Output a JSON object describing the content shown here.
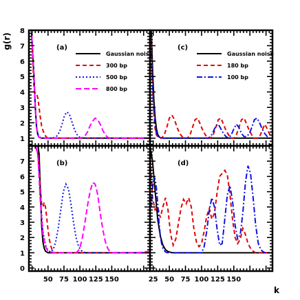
{
  "figure": {
    "ylabel": "g(r)",
    "xlabel": "k"
  },
  "chart_data": [
    {
      "type": "line",
      "panel_label": "(a)",
      "xlim": [
        20,
        210
      ],
      "ylim": [
        0.5,
        8
      ],
      "xticks": [],
      "yticks": [
        1,
        2,
        3,
        4,
        5,
        6,
        7,
        8
      ],
      "legend": "top-right",
      "series": [
        {
          "name": "Gaussian noise",
          "color": "#000000",
          "dash": "solid",
          "x": [
            20,
            24,
            28,
            30,
            32,
            34,
            36,
            40,
            50,
            60,
            80,
            100,
            120,
            140,
            160,
            180,
            200,
            210
          ],
          "y": [
            8,
            8,
            5,
            3,
            1.7,
            1.2,
            1.05,
            1.0,
            1.0,
            1.0,
            1.0,
            1.0,
            1.0,
            1.0,
            1.0,
            1.0,
            1.0,
            1.0
          ]
        },
        {
          "name": "300 bp",
          "color": "#e00000",
          "dash": "6,4",
          "x": [
            20,
            24,
            28,
            30,
            32,
            34,
            36,
            38,
            40,
            42,
            44,
            46,
            48,
            50,
            60,
            80,
            100,
            120,
            140,
            160,
            180,
            200,
            210
          ],
          "y": [
            8,
            8,
            4.2,
            3.9,
            3.9,
            3.6,
            3.0,
            2.3,
            1.8,
            1.5,
            1.3,
            1.15,
            1.05,
            1.0,
            1.0,
            1.0,
            1.0,
            1.0,
            1.0,
            1.0,
            1.0,
            1.0,
            1.0
          ]
        },
        {
          "name": "500 bp",
          "color": "#1010e0",
          "dash": "2,3",
          "x": [
            20,
            24,
            28,
            30,
            32,
            34,
            36,
            40,
            44,
            48,
            52,
            56,
            60,
            64,
            68,
            72,
            76,
            80,
            84,
            88,
            92,
            96,
            100,
            110,
            120,
            140,
            160,
            180,
            200,
            210
          ],
          "y": [
            8,
            8,
            5,
            3,
            1.8,
            1.3,
            1.1,
            1.0,
            1.0,
            1.0,
            1.0,
            1.0,
            1.05,
            1.15,
            1.4,
            1.9,
            2.5,
            2.7,
            2.5,
            2.0,
            1.5,
            1.2,
            1.05,
            1.0,
            1.0,
            1.0,
            1.0,
            1.0,
            1.0,
            1.0
          ]
        },
        {
          "name": "800 bp",
          "color": "#ff00ff",
          "dash": "8,4",
          "x": [
            20,
            24,
            28,
            30,
            32,
            34,
            36,
            40,
            60,
            80,
            100,
            104,
            108,
            112,
            116,
            120,
            124,
            128,
            132,
            136,
            140,
            144,
            148,
            152,
            156,
            160,
            180,
            200,
            210
          ],
          "y": [
            8,
            8,
            5,
            3,
            1.7,
            1.2,
            1.05,
            1.0,
            1.0,
            1.0,
            1.0,
            1.05,
            1.15,
            1.4,
            1.8,
            2.1,
            2.3,
            2.2,
            1.9,
            1.5,
            1.2,
            1.05,
            1.0,
            1.0,
            1.0,
            1.0,
            1.0,
            1.0,
            1.0
          ]
        }
      ]
    },
    {
      "type": "line",
      "panel_label": "(c)",
      "xlim": [
        20,
        210
      ],
      "ylim": [
        0.5,
        8
      ],
      "xticks": [],
      "yticks": [],
      "legend": "top-right",
      "series": [
        {
          "name": "Gaussian noise",
          "color": "#000000",
          "dash": "solid",
          "x": [
            20,
            22,
            24,
            26,
            28,
            30,
            32,
            34,
            36,
            40,
            50,
            60,
            80,
            100,
            120,
            140,
            160,
            180,
            200,
            210
          ],
          "y": [
            8,
            8,
            5.5,
            3.5,
            2.3,
            1.6,
            1.25,
            1.1,
            1.03,
            1.0,
            1.0,
            1.0,
            1.0,
            1.0,
            1.0,
            1.0,
            1.0,
            1.0,
            1.0,
            1.0
          ]
        },
        {
          "name": "180 bp",
          "color": "#e00000",
          "dash": "6,4",
          "x": [
            20,
            22,
            24,
            26,
            28,
            30,
            34,
            38,
            42,
            46,
            50,
            54,
            58,
            62,
            66,
            70,
            74,
            78,
            82,
            86,
            90,
            94,
            98,
            102,
            106,
            110,
            114,
            118,
            122,
            126,
            130,
            134,
            138,
            142,
            146,
            150,
            154,
            158,
            162,
            166,
            170,
            174,
            178,
            182,
            186,
            190,
            194,
            198,
            202,
            206,
            210
          ],
          "y": [
            8,
            7.5,
            4.5,
            2.6,
            1.6,
            1.2,
            1.0,
            1.0,
            1.2,
            1.7,
            2.3,
            2.5,
            2.2,
            1.7,
            1.3,
            1.1,
            1.0,
            1.0,
            1.2,
            1.7,
            2.2,
            2.3,
            1.9,
            1.5,
            1.2,
            1.0,
            1.0,
            1.2,
            1.7,
            2.2,
            2.3,
            1.9,
            1.5,
            1.2,
            1.0,
            1.0,
            1.2,
            1.7,
            2.2,
            2.3,
            1.9,
            1.5,
            1.2,
            1.0,
            1.0,
            1.1,
            1.5,
            1.9,
            1.6,
            1.2,
            1.0
          ]
        },
        {
          "name": "100 bp",
          "color": "#1010e0",
          "dash": "8,3,2,3",
          "x": [
            20,
            22,
            24,
            26,
            28,
            30,
            34,
            40,
            50,
            60,
            70,
            80,
            90,
            100,
            110,
            114,
            118,
            122,
            126,
            130,
            134,
            138,
            142,
            146,
            150,
            154,
            158,
            162,
            166,
            170,
            174,
            178,
            182,
            186,
            190,
            194,
            198,
            202,
            206,
            210
          ],
          "y": [
            8,
            6.5,
            4.5,
            2.8,
            1.8,
            1.3,
            1.05,
            1.0,
            1.0,
            1.0,
            1.0,
            1.0,
            1.0,
            1.0,
            1.0,
            1.1,
            1.4,
            1.8,
            1.9,
            1.6,
            1.3,
            1.1,
            1.0,
            1.2,
            1.6,
            1.9,
            1.7,
            1.3,
            1.1,
            1.1,
            1.3,
            1.7,
            2.2,
            2.3,
            2.0,
            1.6,
            1.3,
            1.1,
            1.0,
            1.0
          ]
        }
      ]
    },
    {
      "type": "line",
      "panel_label": "(b)",
      "xlim": [
        20,
        210
      ],
      "ylim": [
        -0.2,
        8
      ],
      "xticks": [
        50,
        75,
        100,
        125,
        150
      ],
      "xticklabels": [
        "50",
        "75",
        "100",
        "125",
        "150"
      ],
      "yticks": [
        0,
        1,
        2,
        3,
        4,
        5,
        6,
        7
      ],
      "legend": "none",
      "series": [
        {
          "name": "Gaussian noise",
          "color": "#000000",
          "dash": "solid",
          "x": [
            20,
            30,
            34,
            36,
            38,
            40,
            42,
            44,
            46,
            50,
            56,
            60,
            70,
            80,
            100,
            120,
            140,
            160,
            180,
            200,
            210
          ],
          "y": [
            8,
            8,
            8,
            7.5,
            5.0,
            2.8,
            1.7,
            1.3,
            1.1,
            1.0,
            1.0,
            1.0,
            1.0,
            1.0,
            1.0,
            1.0,
            1.0,
            1.0,
            1.0,
            1.0,
            1.0
          ]
        },
        {
          "name": "300 bp",
          "color": "#e00000",
          "dash": "6,4",
          "x": [
            20,
            30,
            34,
            38,
            40,
            42,
            44,
            46,
            48,
            50,
            52,
            54,
            56,
            58,
            60,
            64,
            68,
            72,
            80,
            100,
            120,
            140,
            160,
            180,
            200,
            210
          ],
          "y": [
            8,
            8,
            7.5,
            5.2,
            4.2,
            4.0,
            4.3,
            4.0,
            3.3,
            2.5,
            1.9,
            1.5,
            1.25,
            1.1,
            1.0,
            1.0,
            1.0,
            1.0,
            1.0,
            1.0,
            1.0,
            1.0,
            1.0,
            1.0,
            1.0,
            1.0
          ]
        },
        {
          "name": "500 bp",
          "color": "#1010e0",
          "dash": "2,3",
          "x": [
            20,
            30,
            34,
            38,
            42,
            46,
            50,
            54,
            58,
            62,
            66,
            70,
            74,
            78,
            82,
            86,
            90,
            94,
            98,
            102,
            106,
            110,
            120,
            140,
            160,
            180,
            200,
            210
          ],
          "y": [
            8,
            8,
            7.5,
            4.5,
            2.4,
            1.5,
            1.15,
            1.05,
            1.2,
            1.7,
            2.6,
            3.8,
            5.0,
            5.5,
            5.2,
            4.2,
            3.0,
            2.0,
            1.4,
            1.15,
            1.05,
            1.0,
            1.0,
            1.0,
            1.0,
            1.0,
            1.0,
            1.0
          ]
        },
        {
          "name": "800 bp",
          "color": "#ff00ff",
          "dash": "8,4",
          "x": [
            20,
            30,
            34,
            38,
            42,
            46,
            50,
            60,
            70,
            80,
            90,
            96,
            100,
            104,
            108,
            112,
            116,
            120,
            124,
            128,
            132,
            136,
            140,
            144,
            148,
            152,
            156,
            160,
            170,
            180,
            190,
            200,
            210
          ],
          "y": [
            8,
            8,
            7.5,
            4.3,
            2.2,
            1.4,
            1.1,
            1.0,
            1.0,
            1.0,
            1.0,
            1.05,
            1.3,
            2.0,
            3.0,
            4.1,
            5.0,
            5.6,
            5.5,
            4.8,
            3.6,
            2.5,
            1.7,
            1.25,
            1.05,
            1.0,
            1.0,
            1.0,
            1.0,
            1.0,
            1.0,
            1.05,
            1.1
          ]
        }
      ]
    },
    {
      "type": "line",
      "panel_label": "(d)",
      "xlim": [
        20,
        210
      ],
      "ylim": [
        -0.2,
        8
      ],
      "xticks": [
        25,
        50,
        75,
        100,
        125,
        150
      ],
      "xticklabels": [
        "25",
        "50",
        "75",
        "100",
        "125",
        "150"
      ],
      "yticks": [],
      "legend": "none",
      "series": [
        {
          "name": "Gaussian noise",
          "color": "#000000",
          "dash": "solid",
          "x": [
            20,
            24,
            28,
            32,
            36,
            40,
            44,
            48,
            52,
            56,
            60,
            70,
            80,
            100,
            120,
            140,
            160,
            180,
            200,
            210
          ],
          "y": [
            8,
            7.0,
            5.0,
            3.2,
            2.1,
            1.5,
            1.2,
            1.08,
            1.03,
            1.0,
            1.0,
            1.0,
            1.0,
            1.0,
            1.0,
            1.0,
            1.0,
            1.0,
            1.0,
            1.0
          ]
        },
        {
          "name": "180 bp",
          "color": "#e00000",
          "dash": "6,4",
          "x": [
            20,
            24,
            28,
            32,
            36,
            40,
            44,
            48,
            52,
            56,
            60,
            64,
            68,
            72,
            76,
            80,
            84,
            88,
            92,
            96,
            100,
            104,
            108,
            112,
            116,
            120,
            124,
            128,
            132,
            136,
            140,
            144,
            148,
            152,
            156,
            160,
            164,
            168,
            172,
            176,
            180,
            184,
            188,
            192,
            196,
            200,
            204,
            208,
            210
          ],
          "y": [
            7.5,
            4.6,
            3.8,
            4.0,
            3.3,
            4.0,
            4.6,
            3.8,
            2.2,
            1.5,
            1.9,
            2.9,
            3.9,
            4.5,
            4.2,
            4.6,
            4.0,
            2.6,
            1.7,
            1.4,
            1.6,
            2.4,
            3.4,
            3.9,
            3.2,
            3.6,
            4.9,
            6.0,
            6.2,
            6.4,
            6.1,
            4.8,
            3.2,
            2.0,
            1.6,
            1.9,
            2.6,
            2.2,
            1.6,
            1.3,
            1.1,
            1.0,
            1.0,
            1.0,
            1.0,
            1.0,
            1.0,
            1.0,
            1.0
          ]
        },
        {
          "name": "100 bp",
          "color": "#1010e0",
          "dash": "8,3,2,3",
          "x": [
            20,
            22,
            24,
            26,
            28,
            30,
            32,
            34,
            36,
            38,
            40,
            44,
            48,
            52,
            56,
            60,
            70,
            80,
            90,
            100,
            104,
            108,
            112,
            116,
            120,
            124,
            128,
            132,
            136,
            140,
            144,
            148,
            152,
            156,
            160,
            164,
            168,
            172,
            176,
            180,
            184,
            188,
            192,
            196,
            200,
            204,
            208,
            210
          ],
          "y": [
            5.0,
            4.0,
            5.2,
            6.0,
            5.8,
            5.2,
            4.2,
            3.0,
            2.1,
            1.6,
            1.3,
            1.05,
            1.0,
            1.0,
            1.0,
            1.0,
            1.0,
            1.0,
            1.0,
            1.0,
            1.4,
            2.4,
            3.8,
            4.6,
            4.0,
            2.6,
            1.5,
            1.6,
            3.2,
            4.8,
            5.4,
            4.4,
            2.8,
            1.9,
            2.2,
            3.6,
            5.6,
            6.7,
            6.2,
            4.6,
            2.8,
            1.6,
            1.2,
            1.05,
            1.0,
            1.0,
            1.0,
            1.0
          ]
        }
      ]
    }
  ]
}
